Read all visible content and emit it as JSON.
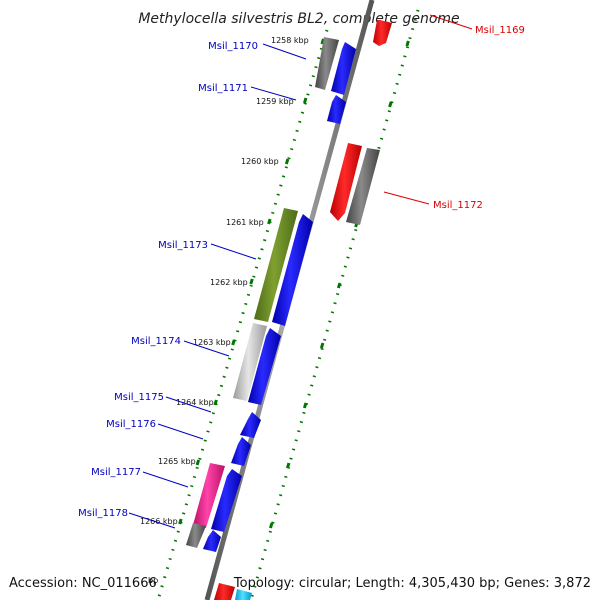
{
  "title": "Methylocella silvestris BL2, complete genome",
  "accession": "Accession: NC_011666",
  "stats": "Topology: circular; Length: 4,305,430 bp; Genes: 3,872",
  "partial_bp": "bp",
  "colors": {
    "plus_label": "#0000c0",
    "minus_label": "#dd0000",
    "backbone": "#888888",
    "tick": "#007700"
  },
  "ticks": [
    "1258 kbp",
    "1259 kbp",
    "1260 kbp",
    "1261 kbp",
    "1262 kbp",
    "1263 kbp",
    "1264 kbp",
    "1265 kbp",
    "1266 kbp"
  ],
  "genes": [
    {
      "id": "Msil_1169",
      "strand": "minus",
      "color": "#ff0000"
    },
    {
      "id": "Msil_1170",
      "strand": "plus",
      "color": "#0000ff"
    },
    {
      "id": "Msil_1171",
      "strand": "plus",
      "color": "#0000ff"
    },
    {
      "id": "Msil_1172",
      "strand": "minus",
      "color": "#ff0000"
    },
    {
      "id": "Msil_1173",
      "strand": "plus",
      "color": "#0000ff"
    },
    {
      "id": "Msil_1174",
      "strand": "plus",
      "color": "#0000ff"
    },
    {
      "id": "Msil_1175",
      "strand": "plus",
      "color": "#0000ff"
    },
    {
      "id": "Msil_1176",
      "strand": "plus",
      "color": "#0000ff"
    },
    {
      "id": "Msil_1177",
      "strand": "plus",
      "color": "#0000ff"
    },
    {
      "id": "Msil_1178",
      "strand": "plus",
      "color": "#0000ff"
    }
  ],
  "feature_colors": {
    "cog_grey": "#6e6e6e",
    "cog_green": "#6a8c2a",
    "cog_lightgrey": "#c4c4c4",
    "cog_pink": "#ee2288",
    "cog_cyan": "#00ccff"
  }
}
